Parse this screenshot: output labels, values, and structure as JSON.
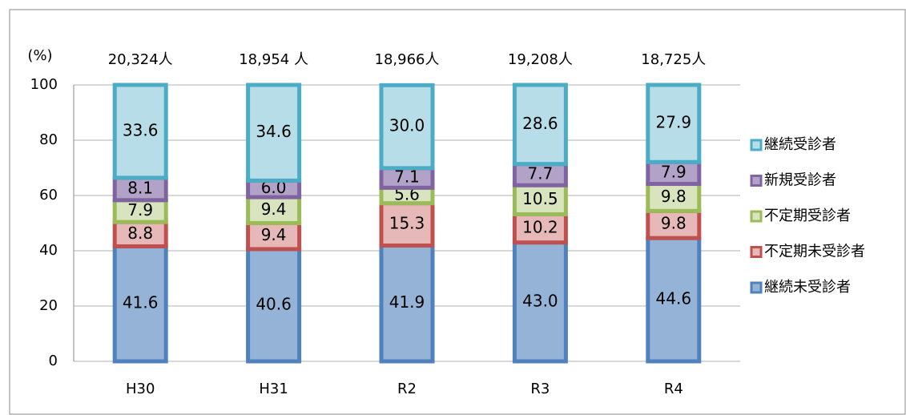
{
  "chart_data": {
    "type": "stacked_bar",
    "y_label": "(%)",
    "categories": [
      "H30",
      "H31",
      "R2",
      "R3",
      "R4"
    ],
    "top_labels": [
      "20,324人",
      "18,954 人",
      "18,966人",
      "19,208人",
      "18,725人"
    ],
    "series": [
      {
        "name": "継続未受診者",
        "color": "#4f81bd",
        "fill": "#95b3d7",
        "values": [
          41.6,
          40.6,
          41.9,
          43.0,
          44.6
        ],
        "value_labels": [
          "41.6",
          "40.6",
          "41.9",
          "43.0",
          "44.6"
        ]
      },
      {
        "name": "不定期未受診者",
        "color": "#c0504d",
        "fill": "#e6b9b8",
        "values": [
          8.8,
          9.4,
          15.3,
          10.2,
          9.8
        ],
        "value_labels": [
          "8.8",
          "9.4",
          "15.3",
          "10.2",
          "9.8"
        ]
      },
      {
        "name": "不定期受診者",
        "color": "#9bbb59",
        "fill": "#d7e4bd",
        "values": [
          7.9,
          9.4,
          5.6,
          10.5,
          9.8
        ],
        "value_labels": [
          "7.9",
          "9.4",
          "5.6",
          "10.5",
          "9.8"
        ]
      },
      {
        "name": "新規受診者",
        "color": "#8064a2",
        "fill": "#b3a2c7",
        "values": [
          8.1,
          6.0,
          7.1,
          7.7,
          7.9
        ],
        "value_labels": [
          "8.1",
          "6.0",
          "7.1",
          "7.7",
          "7.9"
        ]
      },
      {
        "name": "継続受診者",
        "color": "#4bacc6",
        "fill": "#b7dee8",
        "values": [
          33.6,
          34.6,
          30.0,
          28.6,
          27.9
        ],
        "value_labels": [
          "33.6",
          "34.6",
          "30.0",
          "28.6",
          "27.9"
        ]
      }
    ],
    "ylim": [
      0,
      100
    ],
    "yticks": [
      0,
      20,
      40,
      60,
      80,
      100
    ],
    "grid": true,
    "legend": "right"
  }
}
